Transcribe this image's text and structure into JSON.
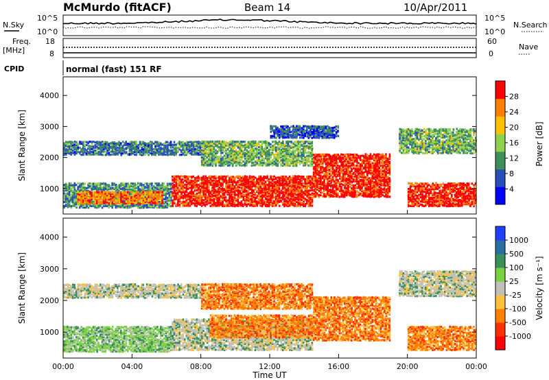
{
  "header": {
    "station": "McMurdo (fitACF)",
    "beam": "Beam 14",
    "date": "10/Apr/2011"
  },
  "top_panel": {
    "left_label": "N.Sky",
    "right_label": "N.Search",
    "scale_top": "10^5",
    "scale_bottom": "10^0",
    "freq_label_1": "Freq.",
    "freq_label_2": "[MHz]",
    "freq_ticks": [
      "18",
      "8"
    ],
    "nave_label": "Nave",
    "nave_ticks": [
      "60",
      "0"
    ],
    "cpid_label": "CPID",
    "cpid_text": "normal (fast) 151 RF"
  },
  "chart_data": [
    {
      "type": "heatmap",
      "name": "power",
      "ylabel": "Slant Range [km]",
      "xlabel": "",
      "x_ticks": [
        "00:00",
        "04:00",
        "08:00",
        "12:00",
        "16:00",
        "20:00",
        "00:00"
      ],
      "xlim_hours": [
        0,
        24
      ],
      "y_ticks": [
        1000,
        2000,
        3000,
        4000
      ],
      "ylim": [
        180,
        4600
      ],
      "colorbar": {
        "label": "Power [dB]",
        "ticks": [
          "4",
          "8",
          "12",
          "16",
          "20",
          "24",
          "28"
        ],
        "colors": [
          "#0000ff",
          "#2a4fb8",
          "#3f8f5a",
          "#8fd14f",
          "#ffc000",
          "#ff7f00",
          "#ff0000"
        ]
      },
      "bands": [
        {
          "x0": 0,
          "x1": 6.3,
          "r0": 350,
          "r1": 1150,
          "value": 12
        },
        {
          "x0": 0.8,
          "x1": 5.8,
          "r0": 480,
          "r1": 900,
          "value": 24
        },
        {
          "x0": 6.3,
          "x1": 14.5,
          "r0": 400,
          "r1": 1400,
          "value": 28
        },
        {
          "x0": 14.5,
          "x1": 19.0,
          "r0": 700,
          "r1": 2100,
          "value": 28
        },
        {
          "x0": 20.0,
          "x1": 24,
          "r0": 400,
          "r1": 1150,
          "value": 28
        },
        {
          "x0": 0,
          "x1": 8.0,
          "r0": 2050,
          "r1": 2500,
          "value": 10
        },
        {
          "x0": 8.0,
          "x1": 14.5,
          "r0": 1700,
          "r1": 2500,
          "value": 14
        },
        {
          "x0": 12.0,
          "x1": 16.0,
          "r0": 2600,
          "r1": 3000,
          "value": 8
        },
        {
          "x0": 19.5,
          "x1": 24,
          "r0": 2100,
          "r1": 2900,
          "value": 14
        }
      ]
    },
    {
      "type": "heatmap",
      "name": "velocity",
      "ylabel": "Slant Range [km]",
      "xlabel": "Time UT",
      "x_ticks": [
        "00:00",
        "04:00",
        "08:00",
        "12:00",
        "16:00",
        "20:00",
        "00:00"
      ],
      "xlim_hours": [
        0,
        24
      ],
      "y_ticks": [
        1000,
        2000,
        3000,
        4000
      ],
      "ylim": [
        180,
        4600
      ],
      "colorbar": {
        "label": "Velocity [m s⁻¹]",
        "ticks": [
          "1000",
          "500",
          "100",
          "25",
          "-25",
          "-100",
          "-500",
          "-1000"
        ],
        "colors": [
          "#1f3fff",
          "#2a6fa0",
          "#3a8f5a",
          "#79d13f",
          "#c0c0b8",
          "#ffc040",
          "#ff8000",
          "#ff3000",
          "#ff0000"
        ]
      },
      "bands": [
        {
          "x0": 0,
          "x1": 6.3,
          "r0": 350,
          "r1": 1150,
          "value": "green"
        },
        {
          "x0": 6.3,
          "x1": 14.5,
          "r0": 400,
          "r1": 1400,
          "value": "gray"
        },
        {
          "x0": 8.5,
          "x1": 14.5,
          "r0": 800,
          "r1": 1500,
          "value": "orange"
        },
        {
          "x0": 14.5,
          "x1": 19.0,
          "r0": 700,
          "r1": 2100,
          "value": "orange"
        },
        {
          "x0": 20.0,
          "x1": 24,
          "r0": 400,
          "r1": 1150,
          "value": "orange"
        },
        {
          "x0": 0,
          "x1": 8.0,
          "r0": 2050,
          "r1": 2500,
          "value": "gray"
        },
        {
          "x0": 8.0,
          "x1": 14.5,
          "r0": 1700,
          "r1": 2500,
          "value": "orange"
        },
        {
          "x0": 19.5,
          "x1": 24,
          "r0": 2100,
          "r1": 2900,
          "value": "gray"
        }
      ]
    }
  ]
}
